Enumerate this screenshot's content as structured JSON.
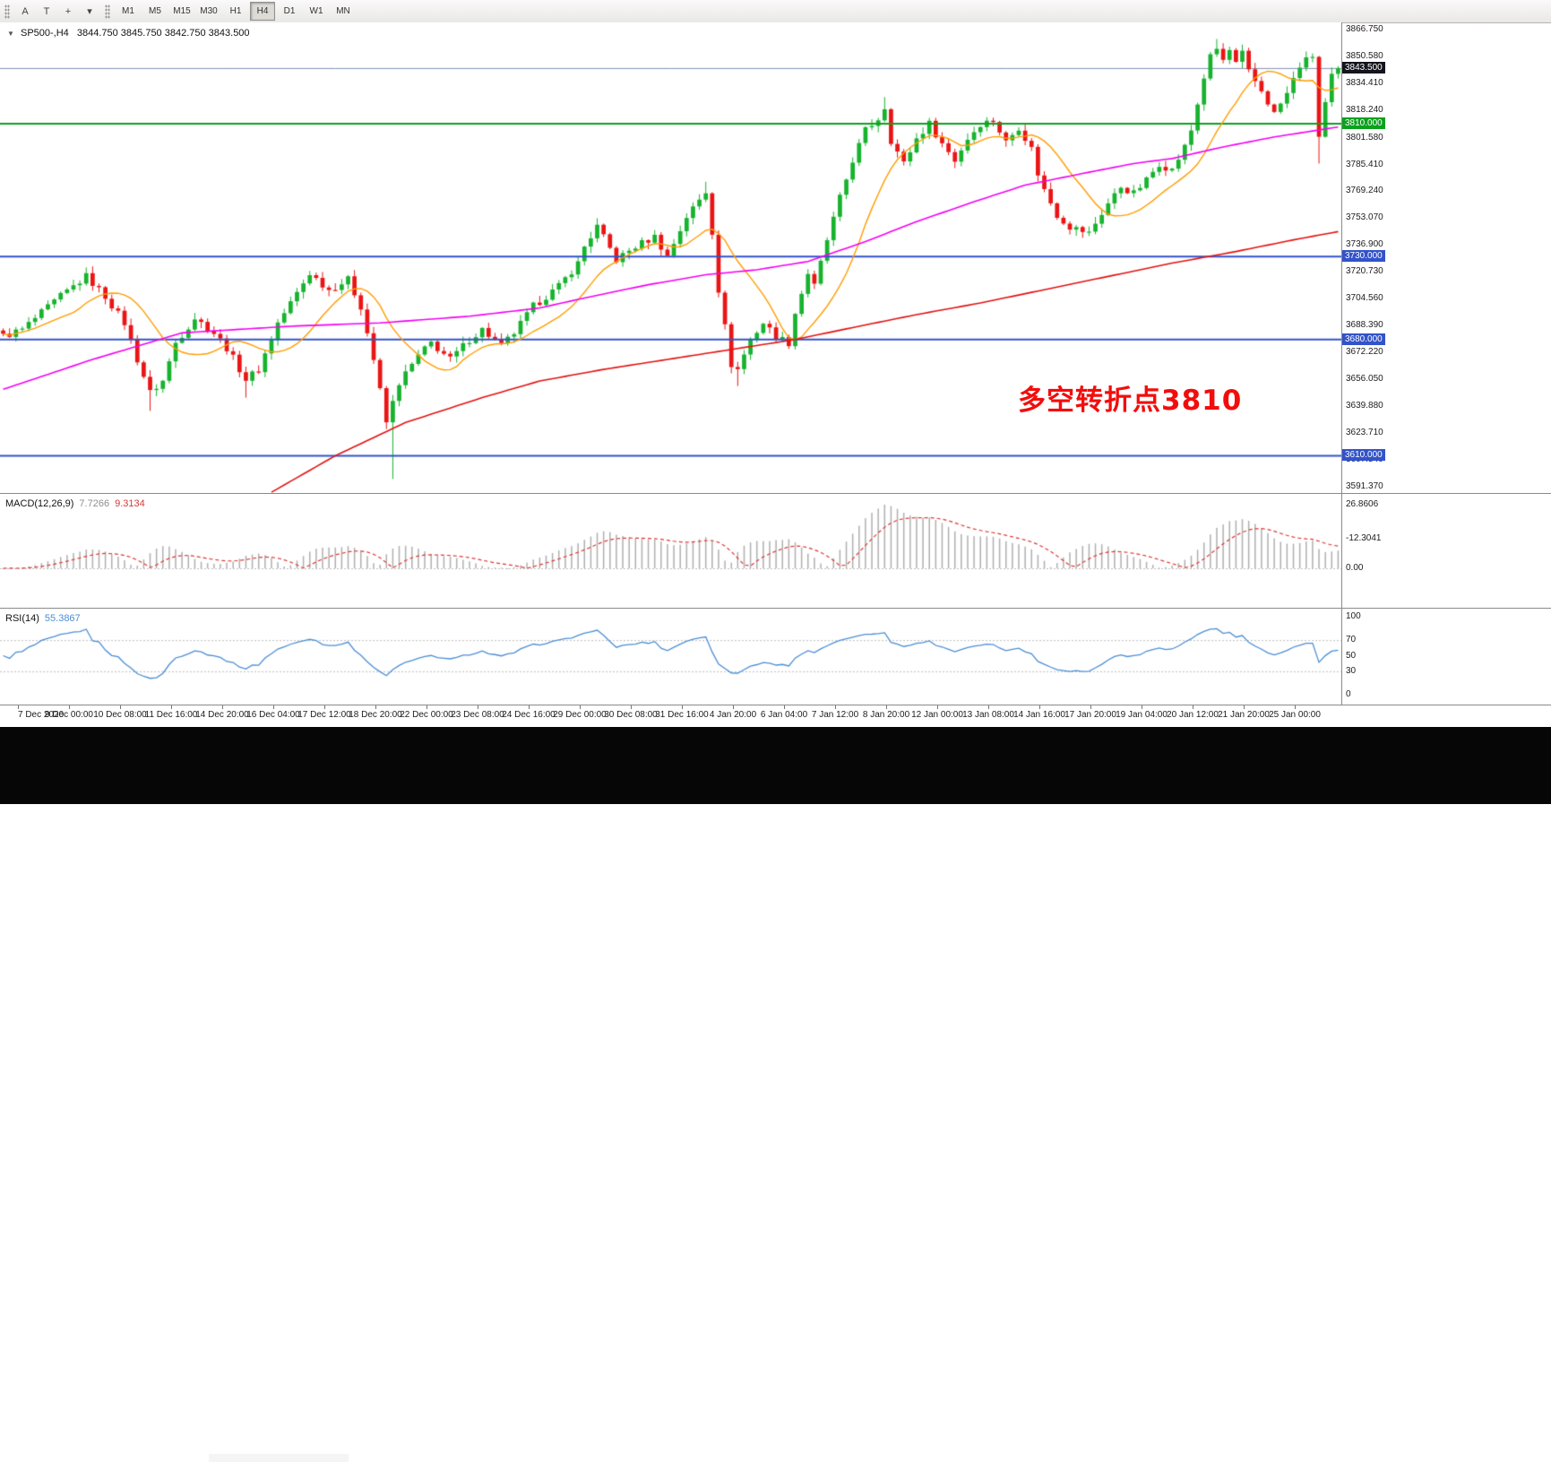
{
  "toolbar": {
    "left_tools": [
      {
        "name": "arrow-label-tool-icon",
        "glyph": "A"
      },
      {
        "name": "text-tool-icon",
        "glyph": "T"
      },
      {
        "name": "crosshair-tool-icon",
        "glyph": "+"
      },
      {
        "name": "templates-dropdown-icon",
        "glyph": "▾"
      }
    ],
    "timeframes": [
      "M1",
      "M5",
      "M15",
      "M30",
      "H1",
      "H4",
      "D1",
      "W1",
      "MN"
    ],
    "active_timeframe": "H4"
  },
  "chart": {
    "header": {
      "dropdown_glyph": "▼",
      "symbol_text": "SP500-,H4",
      "ohlc_text": "3844.750 3845.750 3842.750 3843.500"
    },
    "current_price_label": "3843.500",
    "annotation_text": "多空转折点3810",
    "y_ticks": [
      "3866.750",
      "3850.580",
      "3834.410",
      "3818.240",
      "3801.580",
      "3785.410",
      "3769.240",
      "3753.070",
      "3736.900",
      "3720.730",
      "3704.560",
      "3688.390",
      "3672.220",
      "3656.050",
      "3639.880",
      "3623.710",
      "3607.540",
      "3591.370"
    ],
    "time_labels": [
      "7 Dec 2020",
      "9 Dec 00:00",
      "10 Dec 08:00",
      "11 Dec 16:00",
      "14 Dec 20:00",
      "16 Dec 04:00",
      "17 Dec 12:00",
      "18 Dec 20:00",
      "22 Dec 00:00",
      "23 Dec 08:00",
      "24 Dec 16:00",
      "29 Dec 00:00",
      "30 Dec 08:00",
      "31 Dec 16:00",
      "4 Jan 20:00",
      "6 Jan 04:00",
      "7 Jan 12:00",
      "8 Jan 20:00",
      "12 Jan 00:00",
      "13 Jan 08:00",
      "14 Jan 16:00",
      "17 Jan 20:00",
      "19 Jan 04:00",
      "20 Jan 12:00",
      "21 Jan 20:00",
      "25 Jan 00:00"
    ]
  },
  "macd_panel": {
    "label": "MACD(12,26,9)",
    "value_main": "7.7266",
    "value_signal": "9.3134",
    "axis": [
      "26.8606",
      "0.00",
      "-12.3041"
    ]
  },
  "rsi_panel": {
    "label": "RSI(14)",
    "value": "55.3867",
    "axis": [
      "100",
      "70",
      "50",
      "30",
      "0"
    ]
  },
  "colors": {
    "candle_up": "#17b32e",
    "candle_down": "#ea1515",
    "wick_up": "#17b32e",
    "wick_down": "#ea1515",
    "ma_fast": "#ff9d00",
    "ma_mid": "#f400f4",
    "ma_slow": "#e31212",
    "level_green": "#0ba11d",
    "level_blue": "#3253c9",
    "current_price_line": "#8090b8",
    "current_price_box": "#14141e",
    "macd_hist": "#b0b0b0",
    "macd_signal": "#e03636",
    "rsi_line": "#4b8ed6",
    "indicator_level_dash": "#c0c0c0"
  },
  "chart_data": {
    "type": "candlestick",
    "symbol": "SP500-",
    "timeframe": "H4",
    "bars_total": 210,
    "y_range": [
      3587,
      3871
    ],
    "current_price": 3843.5,
    "price_path": [
      [
        0,
        3682
      ],
      [
        3,
        3686
      ],
      [
        6,
        3696
      ],
      [
        9,
        3706
      ],
      [
        11,
        3712
      ],
      [
        13,
        3718
      ],
      [
        16,
        3706
      ],
      [
        19,
        3690
      ],
      [
        21,
        3668
      ],
      [
        23,
        3648
      ],
      [
        25,
        3655
      ],
      [
        27,
        3678
      ],
      [
        30,
        3693
      ],
      [
        33,
        3684
      ],
      [
        35,
        3675
      ],
      [
        38,
        3656
      ],
      [
        40,
        3662
      ],
      [
        43,
        3690
      ],
      [
        46,
        3708
      ],
      [
        48,
        3720
      ],
      [
        51,
        3710
      ],
      [
        54,
        3716
      ],
      [
        56,
        3700
      ],
      [
        58,
        3668
      ],
      [
        60,
        3630
      ],
      [
        62,
        3654
      ],
      [
        65,
        3670
      ],
      [
        67,
        3678
      ],
      [
        70,
        3668
      ],
      [
        73,
        3680
      ],
      [
        75,
        3686
      ],
      [
        78,
        3676
      ],
      [
        80,
        3684
      ],
      [
        83,
        3700
      ],
      [
        87,
        3712
      ],
      [
        90,
        3726
      ],
      [
        91,
        3736
      ],
      [
        93,
        3748
      ],
      [
        96,
        3728
      ],
      [
        99,
        3736
      ],
      [
        102,
        3742
      ],
      [
        104,
        3730
      ],
      [
        106,
        3746
      ],
      [
        107,
        3754
      ],
      [
        110,
        3769
      ],
      [
        111,
        3745
      ],
      [
        112,
        3710
      ],
      [
        114,
        3665
      ],
      [
        115,
        3662
      ],
      [
        117,
        3680
      ],
      [
        119,
        3690
      ],
      [
        121,
        3682
      ],
      [
        123,
        3678
      ],
      [
        124,
        3696
      ],
      [
        126,
        3720
      ],
      [
        127,
        3712
      ],
      [
        129,
        3740
      ],
      [
        131,
        3765
      ],
      [
        133,
        3788
      ],
      [
        135,
        3806
      ],
      [
        137,
        3813
      ],
      [
        138,
        3820
      ],
      [
        139,
        3800
      ],
      [
        141,
        3786
      ],
      [
        143,
        3801
      ],
      [
        145,
        3810
      ],
      [
        147,
        3798
      ],
      [
        149,
        3788
      ],
      [
        151,
        3801
      ],
      [
        153,
        3810
      ],
      [
        155,
        3812
      ],
      [
        157,
        3799
      ],
      [
        159,
        3808
      ],
      [
        161,
        3795
      ],
      [
        162,
        3780
      ],
      [
        163,
        3770
      ],
      [
        165,
        3755
      ],
      [
        167,
        3748
      ],
      [
        170,
        3744
      ],
      [
        171,
        3750
      ],
      [
        173,
        3762
      ],
      [
        175,
        3772
      ],
      [
        177,
        3768
      ],
      [
        179,
        3776
      ],
      [
        181,
        3786
      ],
      [
        183,
        3782
      ],
      [
        185,
        3796
      ],
      [
        186,
        3806
      ],
      [
        187,
        3822
      ],
      [
        188,
        3838
      ],
      [
        189,
        3850
      ],
      [
        190,
        3855
      ],
      [
        191,
        3848
      ],
      [
        192,
        3854
      ],
      [
        193,
        3846
      ],
      [
        194,
        3852
      ],
      [
        195,
        3841
      ],
      [
        197,
        3830
      ],
      [
        199,
        3816
      ],
      [
        201,
        3828
      ],
      [
        203,
        3845
      ],
      [
        205,
        3851
      ],
      [
        206,
        3802
      ],
      [
        207,
        3822
      ],
      [
        208,
        3838
      ],
      [
        209,
        3843.5
      ]
    ],
    "wick_overrides": [
      [
        23,
        "low",
        3637
      ],
      [
        38,
        "low",
        3645
      ],
      [
        61,
        "low",
        3596
      ],
      [
        93,
        "high",
        3753
      ],
      [
        110,
        "high",
        3775
      ],
      [
        115,
        "low",
        3652
      ],
      [
        138,
        "high",
        3826
      ],
      [
        190,
        "high",
        3861
      ],
      [
        206,
        "low",
        3786
      ]
    ],
    "ma_fast_period": 12,
    "ma_magenta_path": [
      [
        0,
        3650
      ],
      [
        14,
        3668
      ],
      [
        28,
        3684
      ],
      [
        45,
        3688
      ],
      [
        59,
        3690
      ],
      [
        73,
        3694
      ],
      [
        84,
        3699
      ],
      [
        91,
        3705
      ],
      [
        101,
        3713
      ],
      [
        110,
        3719
      ],
      [
        118,
        3722
      ],
      [
        126,
        3727
      ],
      [
        135,
        3739
      ],
      [
        143,
        3751
      ],
      [
        152,
        3763
      ],
      [
        160,
        3773
      ],
      [
        169,
        3780
      ],
      [
        177,
        3786
      ],
      [
        183,
        3789
      ],
      [
        191,
        3796
      ],
      [
        199,
        3802
      ],
      [
        209,
        3808
      ]
    ],
    "ma_red_path": [
      [
        42,
        3588
      ],
      [
        52,
        3610
      ],
      [
        63,
        3630
      ],
      [
        75,
        3645
      ],
      [
        84,
        3655
      ],
      [
        94,
        3662
      ],
      [
        104,
        3668
      ],
      [
        114,
        3674
      ],
      [
        124,
        3680
      ],
      [
        134,
        3688
      ],
      [
        143,
        3695
      ],
      [
        153,
        3702
      ],
      [
        163,
        3710
      ],
      [
        173,
        3718
      ],
      [
        183,
        3726
      ],
      [
        193,
        3733
      ],
      [
        202,
        3740
      ],
      [
        209,
        3745
      ]
    ],
    "levels": [
      {
        "price": 3810,
        "label": "3810.000",
        "style": "green"
      },
      {
        "price": 3730,
        "label": "3730.000",
        "style": "blue"
      },
      {
        "price": 3680,
        "label": "3680.000",
        "style": "blue"
      },
      {
        "price": 3610,
        "label": "3610.000",
        "style": "blue"
      }
    ],
    "macd": {
      "params": [
        12,
        26,
        9
      ],
      "axis_max": 26.8606,
      "axis_min": -12.3041,
      "last_main": 7.7266,
      "last_signal": 9.3134
    },
    "rsi": {
      "period": 14,
      "last": 55.3867,
      "levels": [
        70,
        30
      ],
      "axis_values": [
        100,
        70,
        50,
        30,
        0
      ]
    }
  }
}
